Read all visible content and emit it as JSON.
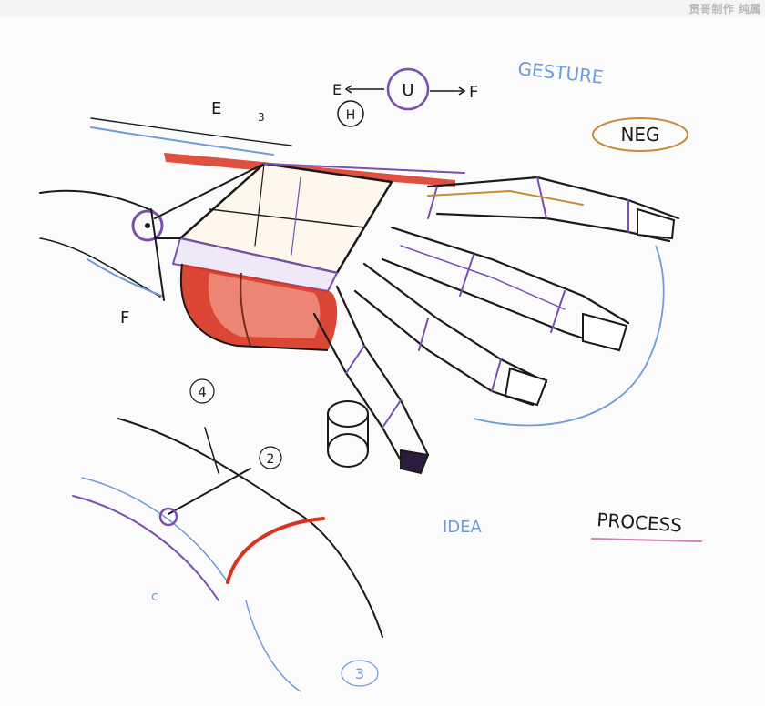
{
  "watermark": "贯哥制作 纯属",
  "annotations": {
    "gesture": "GESTURE",
    "neg": "NEG",
    "e_label": "E",
    "small_3": "3",
    "h_circle": "H",
    "ext_e": "E",
    "u_circle": "U",
    "flex_f": "F",
    "f_left": "F",
    "num_4": "4",
    "num_2": "2",
    "idea": "IDEA",
    "process": "PROCESS",
    "num_3_bottom": "3",
    "c_small": "c"
  },
  "colors": {
    "paper": "#fbfbfb",
    "ink": "#1a1a1a",
    "purple": "#7a4fb0",
    "blue": "#6f9bd8",
    "red": "#d8321e",
    "orange": "#c98a3a"
  }
}
